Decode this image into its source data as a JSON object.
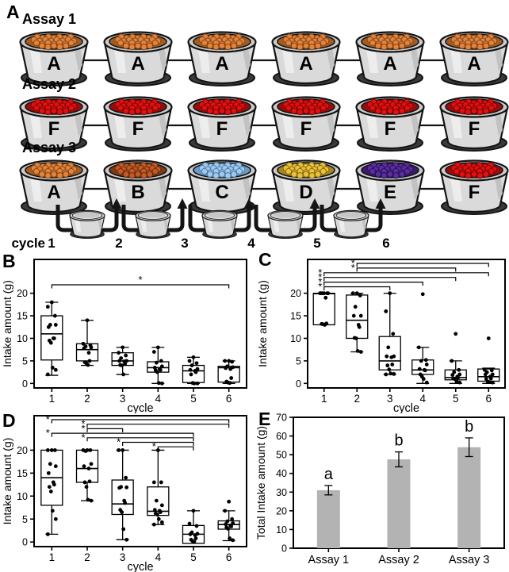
{
  "panels": {
    "a": "A",
    "b": "B",
    "c": "C",
    "d": "D",
    "e": "E"
  },
  "panel_a": {
    "assays": [
      {
        "label": "Assay 1",
        "bowls": [
          {
            "letter": "A",
            "food": "orange"
          },
          {
            "letter": "A",
            "food": "orange"
          },
          {
            "letter": "A",
            "food": "orange"
          },
          {
            "letter": "A",
            "food": "orange"
          },
          {
            "letter": "A",
            "food": "orange"
          },
          {
            "letter": "A",
            "food": "orange"
          }
        ]
      },
      {
        "label": "Assay 2",
        "bowls": [
          {
            "letter": "F",
            "food": "red"
          },
          {
            "letter": "F",
            "food": "red"
          },
          {
            "letter": "F",
            "food": "red"
          },
          {
            "letter": "F",
            "food": "red"
          },
          {
            "letter": "F",
            "food": "red"
          },
          {
            "letter": "F",
            "food": "red"
          }
        ]
      },
      {
        "label": "Assay 3",
        "bowls": [
          {
            "letter": "A",
            "food": "orange"
          },
          {
            "letter": "B",
            "food": "rust"
          },
          {
            "letter": "C",
            "food": "blue"
          },
          {
            "letter": "D",
            "food": "yellow"
          },
          {
            "letter": "E",
            "food": "purple"
          },
          {
            "letter": "F",
            "food": "red"
          }
        ]
      }
    ],
    "foods": {
      "orange": {
        "main": "#E08440",
        "dark": "#8a4712",
        "bg": "#a65c1e"
      },
      "red": {
        "main": "#E21111",
        "dark": "#7c0606",
        "bg": "#9c0b0b"
      },
      "rust": {
        "main": "#C25B28",
        "dark": "#6e2e0e",
        "bg": "#7e3a14"
      },
      "blue": {
        "main": "#A5C9E9",
        "dark": "#4a7fb0",
        "bg": "#6b9cc6"
      },
      "yellow": {
        "main": "#EAC33E",
        "dark": "#8a6d10",
        "bg": "#a8861c"
      },
      "purple": {
        "main": "#5B2E9E",
        "dark": "#2a1158",
        "bg": "#3a1a6e"
      }
    },
    "cycle_word": "cycle",
    "cycles": [
      "1",
      "2",
      "3",
      "4",
      "5",
      "6"
    ]
  },
  "chart_data": [
    {
      "panel": "B",
      "type": "box",
      "xlabel": "cycle",
      "ylabel": "Intake amount (g)",
      "categories": [
        "1",
        "2",
        "3",
        "4",
        "5",
        "6"
      ],
      "yticks": [
        0,
        5,
        10,
        15,
        20
      ],
      "ylim": [
        -1,
        27.5
      ],
      "significance": [
        {
          "from": 1,
          "to": 6,
          "label": "*",
          "label_pos": "center"
        }
      ],
      "groups": [
        {
          "median": 11,
          "q1": 5.2,
          "q3": 15,
          "whisker_low": 1.8,
          "whisker_high": 18,
          "points": [
            18,
            17,
            15,
            13,
            13,
            12.5,
            10,
            10,
            9.5,
            9,
            3.5,
            3,
            2
          ]
        },
        {
          "median": 7.5,
          "q1": 5,
          "q3": 8.8,
          "whisker_low": 4,
          "whisker_high": 14,
          "points": [
            14,
            8.8,
            8.5,
            8.2,
            8,
            7.8,
            6.8,
            5,
            4.7,
            4.4,
            4.1
          ]
        },
        {
          "median": 5,
          "q1": 4,
          "q3": 6.8,
          "whisker_low": 2,
          "whisker_high": 8,
          "points": [
            8,
            6.8,
            6.2,
            5.6,
            5,
            5,
            4.9,
            4.3,
            4.1,
            4,
            2
          ]
        },
        {
          "median": 3.5,
          "q1": 2.5,
          "q3": 4.8,
          "whisker_low": 0,
          "whisker_high": 8,
          "points": [
            8,
            7,
            5,
            4.6,
            3.8,
            3.5,
            3.2,
            3,
            2.9,
            2.5,
            0.1,
            0
          ]
        },
        {
          "median": 2.8,
          "q1": 0.2,
          "q3": 4,
          "whisker_low": 0,
          "whisker_high": 5.8,
          "points": [
            5.8,
            5,
            4.5,
            4,
            3.2,
            3,
            2.8,
            2.5,
            2,
            0.1,
            0,
            0
          ]
        },
        {
          "median": 3.5,
          "q1": 0.3,
          "q3": 3.8,
          "whisker_low": 0,
          "whisker_high": 5,
          "points": [
            5,
            5,
            4.8,
            3.8,
            3.6,
            3.4,
            3.2,
            1.2,
            0.4,
            0.2,
            0.1
          ]
        }
      ]
    },
    {
      "panel": "C",
      "type": "box",
      "xlabel": "cycle",
      "ylabel": "Intake amount (g)",
      "categories": [
        "1",
        "2",
        "3",
        "4",
        "5",
        "6"
      ],
      "yticks": [
        0,
        5,
        10,
        15,
        20
      ],
      "ylim": [
        -1,
        27.5
      ],
      "significance": [
        {
          "from": 2,
          "to": 6,
          "label": "*",
          "label_pos": "left"
        },
        {
          "from": 2,
          "to": 5,
          "label": "*",
          "label_pos": "left"
        },
        {
          "from": 1,
          "to": 6,
          "label": "*",
          "label_pos": "left"
        },
        {
          "from": 1,
          "to": 5,
          "label": "*",
          "label_pos": "left"
        },
        {
          "from": 1,
          "to": 4,
          "label": "*",
          "label_pos": "left"
        },
        {
          "from": 1,
          "to": 3,
          "label": "*",
          "label_pos": "left"
        }
      ],
      "groups": [
        {
          "median": 19.9,
          "q1": 13,
          "q3": 20,
          "whisker_low": 13,
          "whisker_high": 20,
          "points": [
            20,
            20,
            20,
            20,
            20,
            20,
            19,
            13.3,
            13.2,
            13.1,
            13
          ]
        },
        {
          "median": 14,
          "q1": 10,
          "q3": 19.6,
          "whisker_low": 7,
          "whisker_high": 20,
          "points": [
            20,
            20,
            19.5,
            17,
            15,
            15,
            13,
            12.5,
            10.1,
            10,
            7.2,
            7
          ]
        },
        {
          "median": 5,
          "q1": 3,
          "q3": 10.4,
          "whisker_low": 2,
          "whisker_high": 20,
          "points": [
            20,
            16,
            11,
            8,
            6,
            6,
            5.8,
            4.2,
            4,
            3.1,
            2.2,
            2.1,
            2
          ]
        },
        {
          "median": 3,
          "q1": 2,
          "q3": 5.2,
          "whisker_low": 0,
          "whisker_high": 8,
          "points": [
            19.8,
            8,
            5.2,
            5,
            4.2,
            3.2,
            3,
            2.9,
            2,
            1.5,
            1,
            0.2
          ]
        },
        {
          "median": 1.3,
          "q1": 0.8,
          "q3": 3,
          "whisker_low": 0,
          "whisker_high": 5,
          "points": [
            11,
            5,
            3,
            2.5,
            2,
            1.9,
            1.5,
            1.3,
            1.1,
            1,
            0.5,
            0.2
          ]
        },
        {
          "median": 1.5,
          "q1": 0.5,
          "q3": 3.2,
          "whisker_low": 0,
          "whisker_high": 3.4,
          "points": [
            10,
            3,
            2.9,
            2.5,
            2,
            2,
            1.5,
            1.1,
            1,
            0.4,
            0.3,
            0.2
          ]
        }
      ]
    },
    {
      "panel": "D",
      "type": "box",
      "xlabel": "cycle",
      "ylabel": "Intake amount (g)",
      "categories": [
        "1",
        "2",
        "3",
        "4",
        "5",
        "6"
      ],
      "yticks": [
        0,
        5,
        10,
        15,
        20
      ],
      "ylim": [
        -1,
        27.5
      ],
      "significance": [
        {
          "from": 1,
          "to": 6,
          "label": "*",
          "label_pos": "left"
        },
        {
          "from": 2,
          "to": 6,
          "label": "*",
          "label_pos": "left"
        },
        {
          "from": 2,
          "to": 3,
          "label": "*",
          "label_pos": "left"
        },
        {
          "from": 1,
          "to": 5,
          "label": "*",
          "label_pos": "left"
        },
        {
          "from": 2,
          "to": 5,
          "label": "*",
          "label_pos": "left"
        },
        {
          "from": 3,
          "to": 5,
          "label": "*",
          "label_pos": "left"
        },
        {
          "from": 4,
          "to": 5,
          "label": "*",
          "label_pos": "left"
        }
      ],
      "groups": [
        {
          "median": 14,
          "q1": 8,
          "q3": 20,
          "whisker_low": 1.7,
          "whisker_high": 20,
          "points": [
            20,
            20,
            20,
            17,
            16.5,
            15,
            13,
            12.5,
            12,
            11,
            6.8,
            5,
            1.7
          ]
        },
        {
          "median": 16,
          "q1": 13,
          "q3": 20,
          "whisker_low": 9,
          "whisker_high": 20,
          "points": [
            20,
            20,
            20,
            19.8,
            17,
            16.5,
            16,
            13.2,
            13,
            12,
            9.2,
            9
          ]
        },
        {
          "median": 8.3,
          "q1": 6,
          "q3": 13.5,
          "whisker_low": 0.5,
          "whisker_high": 20,
          "points": [
            20,
            20,
            14,
            12,
            11.9,
            11.8,
            9,
            8.5,
            7,
            6.5,
            2.8,
            0.5
          ]
        },
        {
          "median": 6.7,
          "q1": 5.8,
          "q3": 12,
          "whisker_low": 3.8,
          "whisker_high": 20,
          "points": [
            20,
            13,
            13,
            9,
            8,
            7,
            6.8,
            6.5,
            6.2,
            6,
            5,
            4.3,
            3.8
          ]
        },
        {
          "median": 1.7,
          "q1": -0.3,
          "q3": 3.6,
          "whisker_low": -0.3,
          "whisker_high": 6.8,
          "points": [
            6.8,
            4,
            3.5,
            2.1,
            1.8,
            1.7,
            1.5,
            0.8,
            0.5,
            0.2,
            0.1
          ]
        },
        {
          "median": 3.8,
          "q1": 2.8,
          "q3": 4.6,
          "whisker_low": 0.3,
          "whisker_high": 6.8,
          "points": [
            8.8,
            6.8,
            5,
            4.5,
            4.1,
            3.9,
            3.6,
            3.4,
            3.2,
            2.9,
            0.8,
            0.4
          ]
        }
      ]
    },
    {
      "panel": "E",
      "type": "bar",
      "xlabel": "",
      "ylabel": "Total Intake amount (g)",
      "categories": [
        "Assay 1",
        "Assay 2",
        "Assay 3"
      ],
      "values": [
        31,
        47.5,
        54
      ],
      "errors": [
        2.5,
        4,
        5
      ],
      "letters": [
        "a",
        "b",
        "b"
      ],
      "yticks": [
        0,
        10,
        20,
        30,
        40,
        50,
        60,
        70
      ],
      "ylim": [
        0,
        70
      ],
      "bar_color": "#b3b3b3"
    }
  ]
}
